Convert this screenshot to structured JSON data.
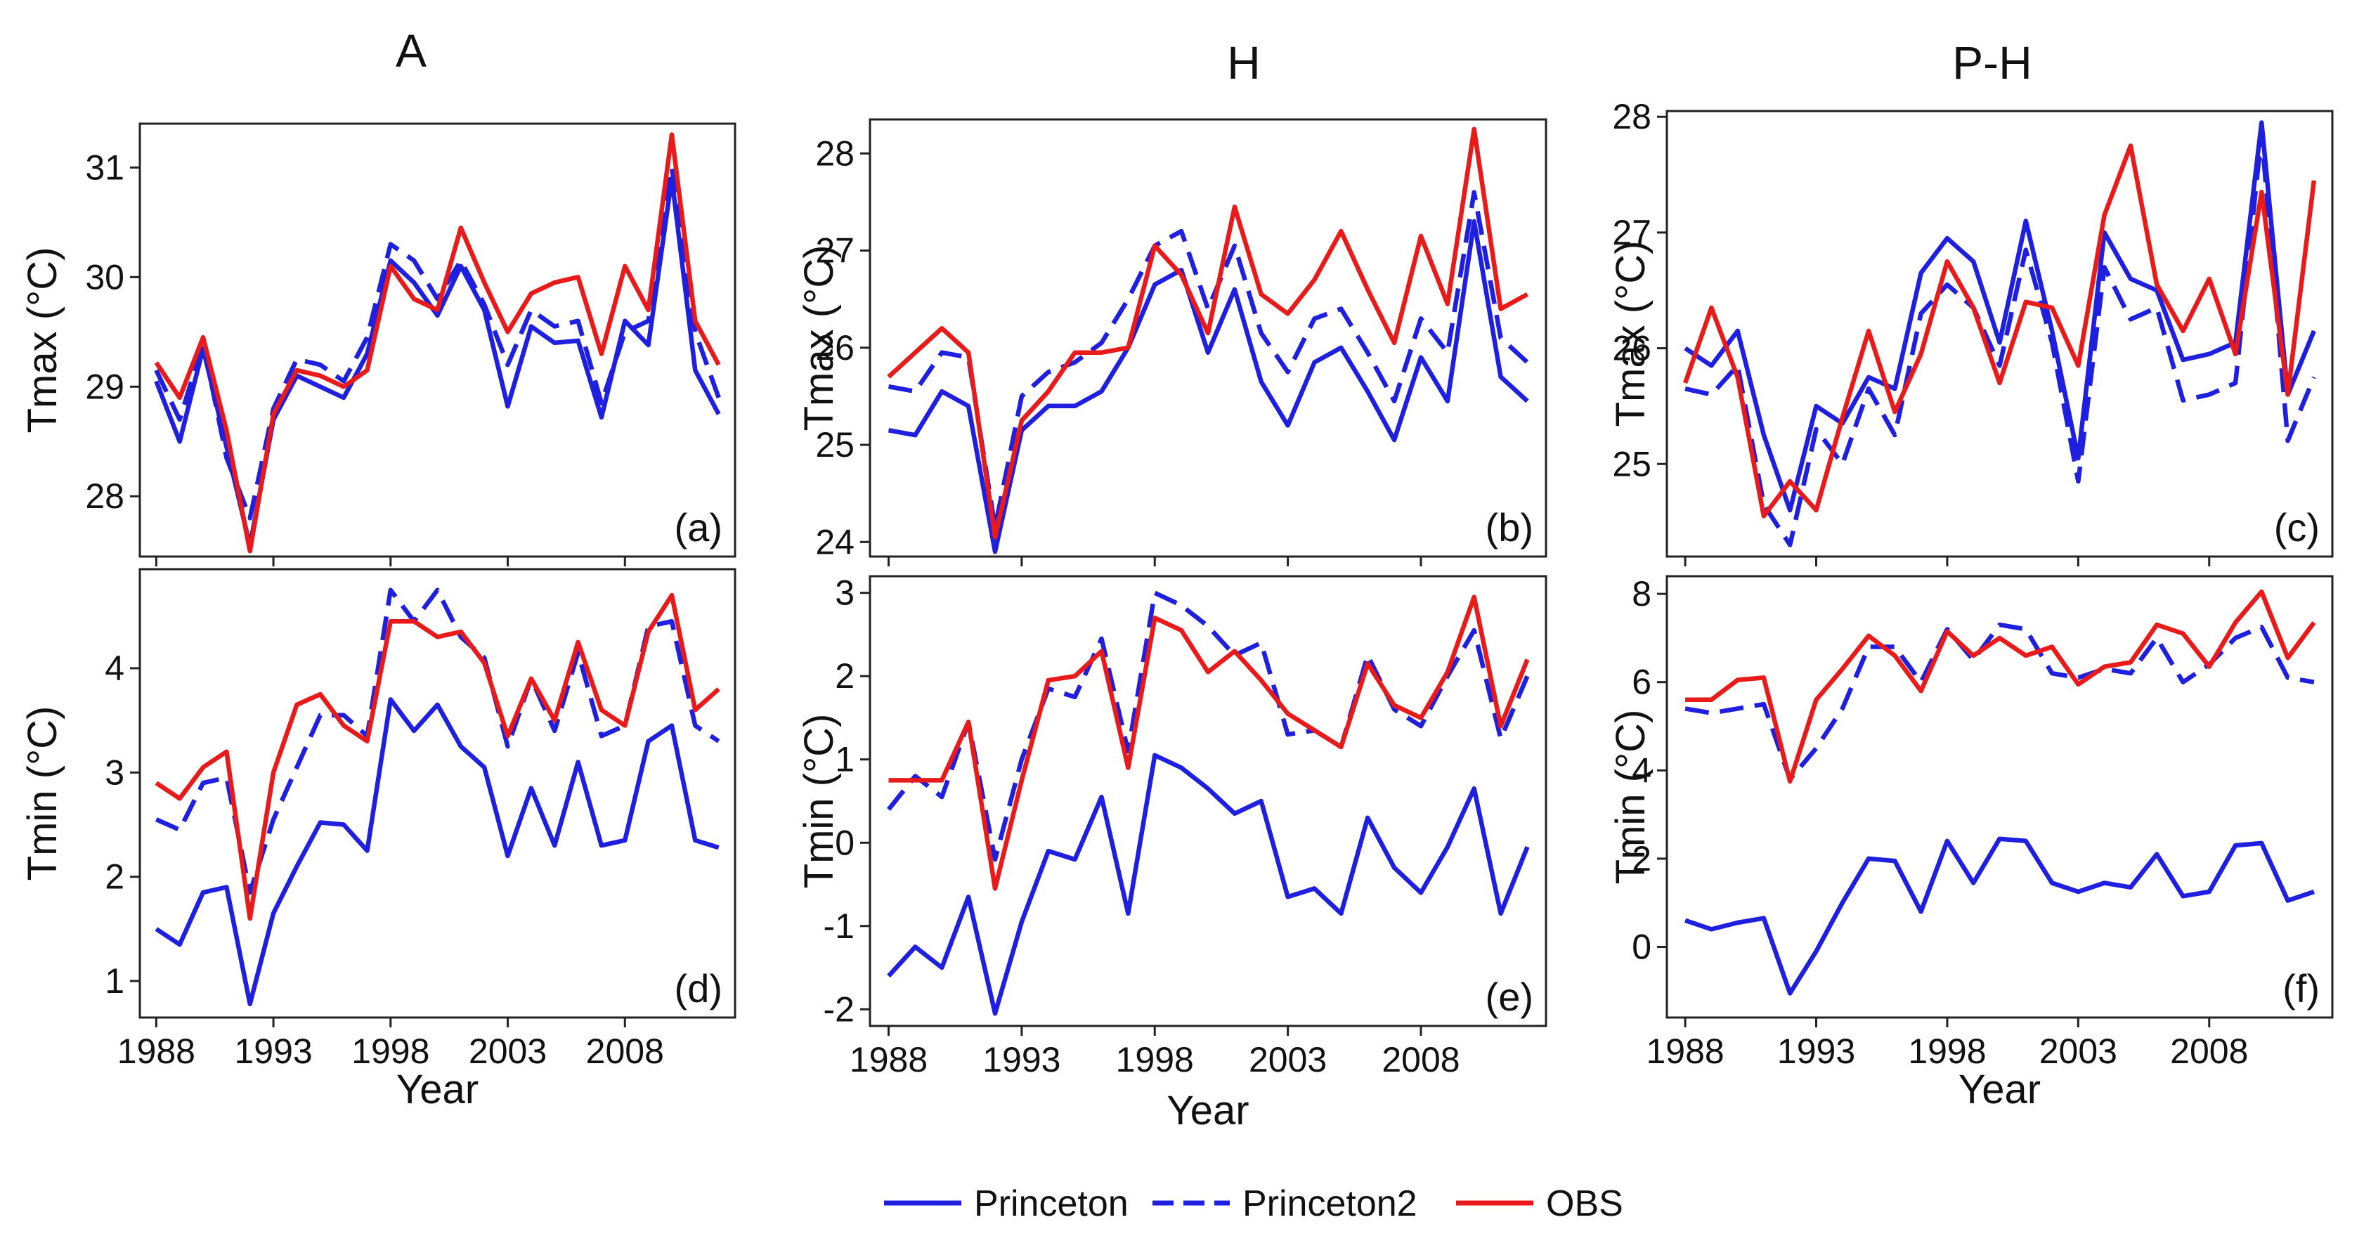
{
  "chart_data": {
    "type": "line",
    "years": [
      1988,
      1989,
      1990,
      1991,
      1992,
      1993,
      1994,
      1995,
      1996,
      1997,
      1998,
      1999,
      2000,
      2001,
      2002,
      2003,
      2004,
      2005,
      2006,
      2007,
      2008,
      2009,
      2010,
      2011,
      2012
    ],
    "x_ticks": [
      1988,
      1993,
      1998,
      2003,
      2008
    ],
    "xlabel": "Year",
    "column_titles": [
      "A",
      "H",
      "P-H"
    ],
    "legend": [
      {
        "name": "Princeton",
        "color": "#1f1fe0",
        "dash": "solid"
      },
      {
        "name": "Princeton2",
        "color": "#1f1fe0",
        "dash": "dashed"
      },
      {
        "name": "OBS",
        "color": "#e81a1a",
        "dash": "solid"
      }
    ],
    "panels": [
      {
        "id": "a",
        "label": "(a)",
        "column": 0,
        "row": 0,
        "ylabel": "Tmax (°C)",
        "ylim": [
          27.45,
          31.4
        ],
        "yticks": [
          28,
          29,
          30,
          31
        ],
        "series": [
          {
            "name": "Princeton",
            "values": [
              29.05,
              28.5,
              29.35,
              28.45,
              27.55,
              28.7,
              29.1,
              29.0,
              28.9,
              29.3,
              30.15,
              29.95,
              29.65,
              30.1,
              29.7,
              28.82,
              29.55,
              29.4,
              29.42,
              28.72,
              29.6,
              29.38,
              30.9,
              29.15,
              28.75
            ]
          },
          {
            "name": "Princeton2",
            "values": [
              29.15,
              28.7,
              29.4,
              28.35,
              27.8,
              28.8,
              29.25,
              29.2,
              29.05,
              29.45,
              30.3,
              30.15,
              29.8,
              30.15,
              29.75,
              29.2,
              29.7,
              29.55,
              29.6,
              28.85,
              29.5,
              29.6,
              31.0,
              29.5,
              28.9
            ]
          },
          {
            "name": "OBS",
            "values": [
              29.22,
              28.9,
              29.45,
              28.6,
              27.5,
              28.75,
              29.15,
              29.1,
              29.0,
              29.15,
              30.1,
              29.8,
              29.7,
              30.45,
              29.95,
              29.5,
              29.85,
              29.95,
              30.0,
              29.3,
              30.1,
              29.7,
              31.3,
              29.6,
              29.2
            ]
          }
        ]
      },
      {
        "id": "b",
        "label": "(b)",
        "column": 1,
        "row": 0,
        "ylabel": "Tmax (°C)",
        "ylim": [
          23.85,
          28.35
        ],
        "yticks": [
          24,
          25,
          26,
          27,
          28
        ],
        "series": [
          {
            "name": "Princeton",
            "values": [
              25.15,
              25.1,
              25.55,
              25.4,
              23.9,
              25.15,
              25.4,
              25.4,
              25.55,
              26.0,
              26.65,
              26.8,
              25.95,
              26.6,
              25.65,
              25.2,
              25.85,
              26.0,
              25.55,
              25.05,
              25.9,
              25.45,
              27.3,
              25.7,
              25.45
            ]
          },
          {
            "name": "Princeton2",
            "values": [
              25.6,
              25.55,
              25.95,
              25.9,
              24.15,
              25.5,
              25.75,
              25.85,
              26.05,
              26.5,
              27.05,
              27.2,
              26.4,
              27.05,
              26.15,
              25.75,
              26.3,
              26.4,
              25.95,
              25.45,
              26.3,
              25.95,
              27.6,
              26.1,
              25.85
            ]
          },
          {
            "name": "OBS",
            "values": [
              25.7,
              25.95,
              26.2,
              25.95,
              24.05,
              25.25,
              25.55,
              25.95,
              25.95,
              26.0,
              27.05,
              26.75,
              26.15,
              27.45,
              26.55,
              26.35,
              26.7,
              27.2,
              26.6,
              26.05,
              27.15,
              26.45,
              28.25,
              26.4,
              26.55
            ]
          }
        ]
      },
      {
        "id": "c",
        "label": "(c)",
        "column": 2,
        "row": 0,
        "ylabel": "Tmax (°C)",
        "ylim": [
          24.2,
          28.05
        ],
        "yticks": [
          25,
          26,
          27,
          28
        ],
        "series": [
          {
            "name": "Princeton",
            "values": [
              26.0,
              25.85,
              26.15,
              25.25,
              24.6,
              25.5,
              25.35,
              25.75,
              25.65,
              26.65,
              26.95,
              26.75,
              26.05,
              27.1,
              26.15,
              25.05,
              27.0,
              26.6,
              26.5,
              25.9,
              25.95,
              26.05,
              27.95,
              25.6,
              26.15
            ]
          },
          {
            "name": "Princeton2",
            "values": [
              25.65,
              25.6,
              25.85,
              24.65,
              24.3,
              25.3,
              25.0,
              25.65,
              25.25,
              26.3,
              26.55,
              26.35,
              25.85,
              26.85,
              26.05,
              24.85,
              26.7,
              26.25,
              26.35,
              25.55,
              25.6,
              25.7,
              27.85,
              25.2,
              25.75
            ]
          },
          {
            "name": "OBS",
            "values": [
              25.7,
              26.35,
              25.75,
              24.55,
              24.85,
              24.6,
              25.4,
              26.15,
              25.45,
              25.95,
              26.75,
              26.35,
              25.7,
              26.4,
              26.35,
              25.85,
              27.15,
              27.75,
              26.55,
              26.15,
              26.6,
              25.95,
              27.35,
              25.6,
              27.45
            ]
          }
        ]
      },
      {
        "id": "d",
        "label": "(d)",
        "column": 0,
        "row": 1,
        "ylabel": "Tmin (°C)",
        "ylim": [
          0.65,
          4.95
        ],
        "yticks": [
          1,
          2,
          3,
          4
        ],
        "series": [
          {
            "name": "Princeton",
            "values": [
              1.5,
              1.35,
              1.85,
              1.9,
              0.78,
              1.65,
              2.1,
              2.52,
              2.5,
              2.25,
              3.7,
              3.4,
              3.65,
              3.25,
              3.05,
              2.2,
              2.85,
              2.3,
              3.1,
              2.3,
              2.35,
              3.3,
              3.45,
              2.35,
              2.28
            ]
          },
          {
            "name": "Princeton2",
            "values": [
              2.55,
              2.45,
              2.9,
              2.95,
              1.85,
              2.55,
              3.05,
              3.55,
              3.55,
              3.35,
              4.75,
              4.45,
              4.75,
              4.3,
              4.1,
              3.25,
              3.9,
              3.4,
              4.15,
              3.35,
              3.45,
              4.4,
              4.45,
              3.45,
              3.3
            ]
          },
          {
            "name": "OBS",
            "values": [
              2.9,
              2.75,
              3.05,
              3.2,
              1.6,
              3.0,
              3.65,
              3.75,
              3.45,
              3.3,
              4.45,
              4.45,
              4.3,
              4.35,
              4.05,
              3.35,
              3.9,
              3.5,
              4.25,
              3.6,
              3.45,
              4.35,
              4.7,
              3.6,
              3.8
            ]
          }
        ]
      },
      {
        "id": "e",
        "label": "(e)",
        "column": 1,
        "row": 1,
        "ylabel": "Tmin (°C)",
        "ylim": [
          -2.2,
          3.2
        ],
        "yticks": [
          -2,
          -1,
          0,
          1,
          2,
          3
        ],
        "series": [
          {
            "name": "Princeton",
            "values": [
              -1.6,
              -1.25,
              -1.5,
              -0.65,
              -2.05,
              -0.95,
              -0.1,
              -0.2,
              0.55,
              -0.85,
              1.05,
              0.9,
              0.65,
              0.35,
              0.5,
              -0.65,
              -0.55,
              -0.85,
              0.3,
              -0.3,
              -0.6,
              -0.05,
              0.65,
              -0.85,
              -0.05
            ]
          },
          {
            "name": "Princeton2",
            "values": [
              0.4,
              0.8,
              0.55,
              1.45,
              -0.2,
              1.0,
              1.85,
              1.75,
              2.45,
              1.1,
              3.0,
              2.85,
              2.6,
              2.25,
              2.4,
              1.3,
              1.35,
              1.15,
              2.25,
              1.6,
              1.4,
              2.0,
              2.55,
              1.25,
              2.0
            ]
          },
          {
            "name": "OBS",
            "values": [
              0.75,
              0.75,
              0.75,
              1.45,
              -0.55,
              0.75,
              1.95,
              2.0,
              2.3,
              0.9,
              2.7,
              2.55,
              2.05,
              2.3,
              1.95,
              1.55,
              1.35,
              1.15,
              2.15,
              1.65,
              1.5,
              2.05,
              2.95,
              1.4,
              2.2
            ]
          }
        ]
      },
      {
        "id": "f",
        "label": "(f)",
        "column": 2,
        "row": 1,
        "ylabel": "Tmin (°C)",
        "ylim": [
          -1.6,
          8.4
        ],
        "yticks": [
          0,
          2,
          4,
          6,
          8
        ],
        "series": [
          {
            "name": "Princeton",
            "values": [
              0.6,
              0.4,
              0.55,
              0.65,
              -1.05,
              -0.1,
              1.0,
              2.0,
              1.95,
              0.8,
              2.4,
              1.45,
              2.45,
              2.4,
              1.45,
              1.25,
              1.45,
              1.35,
              2.1,
              1.15,
              1.25,
              2.3,
              2.35,
              1.05,
              1.25
            ]
          },
          {
            "name": "Princeton2",
            "values": [
              5.4,
              5.3,
              5.4,
              5.5,
              3.8,
              4.5,
              5.4,
              6.8,
              6.8,
              6.0,
              7.2,
              6.5,
              7.3,
              7.2,
              6.2,
              6.1,
              6.3,
              6.2,
              7.0,
              6.0,
              6.4,
              7.0,
              7.25,
              6.1,
              6.0
            ]
          },
          {
            "name": "OBS",
            "values": [
              5.6,
              5.6,
              6.05,
              6.1,
              3.75,
              5.6,
              6.3,
              7.05,
              6.6,
              5.8,
              7.15,
              6.6,
              7.0,
              6.6,
              6.8,
              5.95,
              6.35,
              6.45,
              7.3,
              7.1,
              6.35,
              7.35,
              8.05,
              6.55,
              7.35
            ]
          }
        ]
      }
    ]
  }
}
